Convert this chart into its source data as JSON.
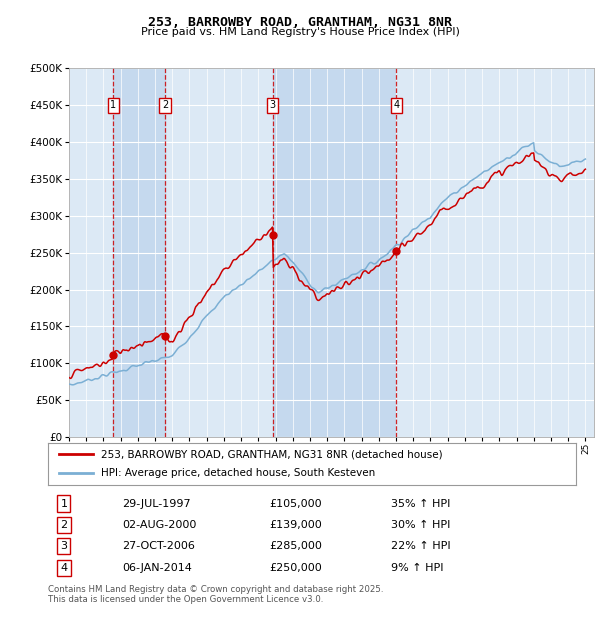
{
  "title": "253, BARROWBY ROAD, GRANTHAM, NG31 8NR",
  "subtitle": "Price paid vs. HM Land Registry's House Price Index (HPI)",
  "ytick_values": [
    0,
    50000,
    100000,
    150000,
    200000,
    250000,
    300000,
    350000,
    400000,
    450000,
    500000
  ],
  "plot_bg_color": "#dce9f5",
  "grid_color": "#ffffff",
  "red_color": "#cc0000",
  "blue_color": "#7bafd4",
  "shade_color": "#c5d9ee",
  "sale_years": [
    1997.58,
    2000.58,
    2006.83,
    2014.02
  ],
  "sale_prices": [
    105000,
    139000,
    285000,
    250000
  ],
  "sale_labels": [
    "1",
    "2",
    "3",
    "4"
  ],
  "legend_line1": "253, BARROWBY ROAD, GRANTHAM, NG31 8NR (detached house)",
  "legend_line2": "HPI: Average price, detached house, South Kesteven",
  "footer": "Contains HM Land Registry data © Crown copyright and database right 2025.\nThis data is licensed under the Open Government Licence v3.0.",
  "table_rows": [
    [
      "1",
      "29-JUL-1997",
      "£105,000",
      "35% ↑ HPI"
    ],
    [
      "2",
      "02-AUG-2000",
      "£139,000",
      "30% ↑ HPI"
    ],
    [
      "3",
      "27-OCT-2006",
      "£285,000",
      "22% ↑ HPI"
    ],
    [
      "4",
      "06-JAN-2014",
      "£250,000",
      "9% ↑ HPI"
    ]
  ]
}
